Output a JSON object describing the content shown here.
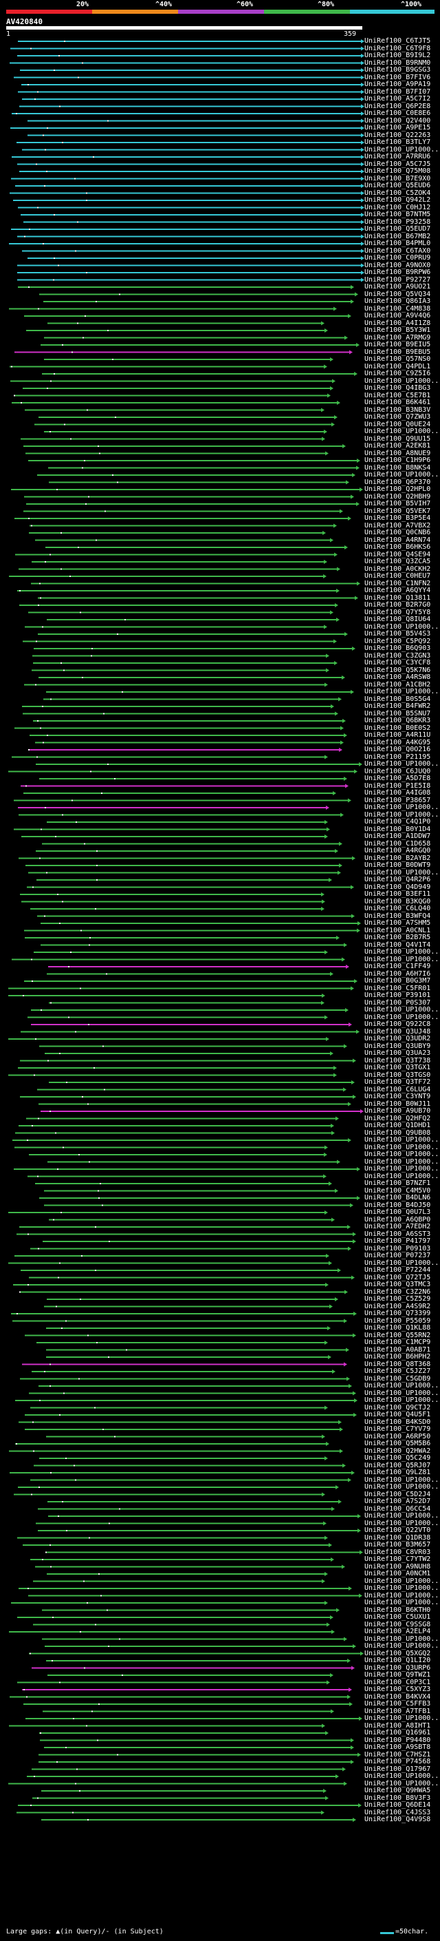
{
  "scale": {
    "labels": [
      "20%",
      "^40%",
      "^60%",
      "^80%",
      "^100%"
    ],
    "colors": [
      "#e8202a",
      "#f08a1c",
      "#a840c8",
      "#3fb84a",
      "#36c8d6"
    ]
  },
  "query": {
    "id": "AV420840",
    "start": "1",
    "end": "359"
  },
  "palette": {
    "cyan": "#36c8d6",
    "green": "#3fb84a",
    "magenta": "#d030c8",
    "red": "#e8202a"
  },
  "hits": [
    "UniRef100_C6TJT5",
    "UniRef100_C6T9F8",
    "UniRef100_B9I9L2",
    "UniRef100_B9RNM0",
    "UniRef100_B9GSG3",
    "UniRef100_B7FIV6",
    "UniRef100_A9PA19",
    "UniRef100_B7FI07",
    "UniRef100_A5C7I2",
    "UniRef100_Q6P2E8",
    "UniRef100_C0E8E6",
    "UniRef100_Q2V400",
    "UniRef100_A9PE15",
    "UniRef100_Q22263",
    "UniRef100_B3TLY7",
    "UniRef100_UP1000...",
    "UniRef100_A7RRU6",
    "UniRef100_A5C7J5",
    "UniRef100_Q75M08",
    "UniRef100_B7E9X0",
    "UniRef100_Q5EUD6",
    "UniRef100_C5ZOK4",
    "UniRef100_Q942L2",
    "UniRef100_C0HJ12",
    "UniRef100_B7NTM5",
    "UniRef100_P93258",
    "UniRef100_Q5EUD7",
    "UniRef100_B67MB2",
    "UniRef100_B4PML0",
    "UniRef100_C6TAX0",
    "UniRef100_C0PRU9",
    "UniRef100_A9NOX0",
    "UniRef100_B9RPW6",
    "UniRef100_P92727",
    "UniRef100_A9UO21",
    "UniRef100_Q5VQ34",
    "UniRef100_Q86IA3",
    "UniRef100_C4M838",
    "UniRef100_A9V4Q6",
    "UniRef100_A4I1Z8",
    "UniRef100_B5Y3W1",
    "UniRef100_A7RMG9",
    "UniRef100_B9EIU5",
    "UniRef100_B9EBU5",
    "UniRef100_Q57NS0",
    "UniRef100_Q4PDL1",
    "UniRef100_C9Z5I6",
    "UniRef100_UP1000...",
    "UniRef100_Q4IBG3",
    "UniRef100_C5E7B1",
    "UniRef100_B6K461",
    "UniRef100_B3NB3V",
    "UniRef100_Q7ZWU3",
    "UniRef100_Q0UE24",
    "UniRef100_UP1000...",
    "UniRef100_Q9UU15",
    "UniRef100_A2EK81",
    "UniRef100_A8NUE9",
    "UniRef100_C1H9P6",
    "UniRef100_B8NKS4",
    "UniRef100_UP1000...",
    "UniRef100_Q6P370",
    "UniRef100_Q2HPL0",
    "UniRef100_Q2HBH9",
    "UniRef100_B5VIH7",
    "UniRef100_Q5VEK7",
    "UniRef100_B3P5E4",
    "UniRef100_A7VBX2",
    "UniRef100_Q0CNB6",
    "UniRef100_A4RN74",
    "UniRef100_B6HKS6",
    "UniRef100_Q4SE94",
    "UniRef100_Q3ZCA5",
    "UniRef100_A0CKH2",
    "UniRef100_C0HEU7",
    "UniRef100_C1NFN2",
    "UniRef100_A6QYY4",
    "UniRef100_Q13811",
    "UniRef100_B2R7G0",
    "UniRef100_Q7Y5Y8",
    "UniRef100_Q8IU64",
    "UniRef100_UP1000...",
    "UniRef100_B5V4S3",
    "UniRef100_C5PQ92",
    "UniRef100_B6Q903",
    "UniRef100_C3ZGN3",
    "UniRef100_C3YCF8",
    "UniRef100_Q5K7N6",
    "UniRef100_A4RSW8",
    "UniRef100_A1CBH2",
    "UniRef100_UP1000...",
    "UniRef100_B0S5G4",
    "UniRef100_B4FWR2",
    "UniRef100_B5SNU7",
    "UniRef100_Q6BKR3",
    "UniRef100_B0E0S2",
    "UniRef100_A4R11U",
    "UniRef100_A4KG95",
    "UniRef100_Q0O216",
    "UniRef100_P21195",
    "UniRef100_UP1000...",
    "UniRef100_C6JUQ0",
    "UniRef100_A5D7E8",
    "UniRef100_P1E5I8",
    "UniRef100_A4IG08",
    "UniRef100_P38657",
    "UniRef100_UP1000...",
    "UniRef100_UP1000...",
    "UniRef100_C4Q1P0",
    "UniRef100_B0Y1D4",
    "UniRef100_A1DDW7",
    "UniRef100_C1D658",
    "UniRef100_A4RGQ0",
    "UniRef100_B2AYB2",
    "UniRef100_B0DWT9",
    "UniRef100_UP1000...",
    "UniRef100_Q4R2P6",
    "UniRef100_Q4D949",
    "UniRef100_B3EF11",
    "UniRef100_B3KQG0",
    "UniRef100_C6LQ40",
    "UniRef100_B3WFQ4",
    "UniRef100_A7SHM5",
    "UniRef100_A0CNL1",
    "UniRef100_B2B7R5",
    "UniRef100_Q4V1T4",
    "UniRef100_UP1000...",
    "UniRef100_UP1000...",
    "UniRef100_C1FF49",
    "UniRef100_A6H7I6",
    "UniRef100_B0G3M7",
    "UniRef100_C5FR01",
    "UniRef100_P39101",
    "UniRef100_P0S307",
    "UniRef100_UP1000...",
    "UniRef100_UP1000...",
    "UniRef100_Q922C8",
    "UniRef100_Q3UJ48",
    "UniRef100_Q3UDR2",
    "UniRef100_Q3UBY9",
    "UniRef100_Q3UA23",
    "UniRef100_Q3T738",
    "UniRef100_Q3TGX1",
    "UniRef100_Q3TGS0",
    "UniRef100_Q3TF72",
    "UniRef100_C6LUG4",
    "UniRef100_C3YNT9",
    "UniRef100_B0WJ11",
    "UniRef100_A9UB70",
    "UniRef100_Q2HFQ2",
    "UniRef100_Q1DHD1",
    "UniRef100_Q9UB08",
    "UniRef100_UP1000...",
    "UniRef100_UP1000...",
    "UniRef100_UP1000...",
    "UniRef100_UP1000...",
    "UniRef100_UP1000...",
    "UniRef100_UP1000...",
    "UniRef100_B7NZF1",
    "UniRef100_C4M5V0",
    "UniRef100_B4DLN6",
    "UniRef100_B4DJ50",
    "UniRef100_Q0U7L3",
    "UniRef100_A6QBP0",
    "UniRef100_A7EDH2",
    "UniRef100_A6SST3",
    "UniRef100_P41797",
    "UniRef100_P09103",
    "UniRef100_P07237",
    "UniRef100_UP1000...",
    "UniRef100_P72244",
    "UniRef100_Q72TJ5",
    "UniRef100_Q3TMC3",
    "UniRef100_C3Z2N6",
    "UniRef100_C5Z529",
    "UniRef100_A4S9R2",
    "UniRef100_Q73399",
    "UniRef100_P55059",
    "UniRef100_Q1KL88",
    "UniRef100_Q55RN2",
    "UniRef100_C1MCP9",
    "UniRef100_A0AB71",
    "UniRef100_B6HPH2",
    "UniRef100_Q8T368",
    "UniRef100_C5JZ27",
    "UniRef100_C5GDB9",
    "UniRef100_UP1000...",
    "UniRef100_UP1000...",
    "UniRef100_UP1000...",
    "UniRef100_Q9CTJ2",
    "UniRef100_Q4U5F1",
    "UniRef100_B4KSD0",
    "UniRef100_C7YV79",
    "UniRef100_A6RP50",
    "UniRef100_Q5M5B6",
    "UniRef100_Q2HWA2",
    "UniRef100_Q5C249",
    "UniRef100_Q5RJ07",
    "UniRef100_Q9LZ81",
    "UniRef100_UP1000...",
    "UniRef100_UP1000...",
    "UniRef100_C5D2J4",
    "UniRef100_A7S2D7",
    "UniRef100_Q6CC54",
    "UniRef100_UP1000...",
    "UniRef100_UP1000...",
    "UniRef100_Q22VT0",
    "UniRef100_Q1DR38",
    "UniRef100_B3M657",
    "UniRef100_C8VR03",
    "UniRef100_C7YTW2",
    "UniRef100_A9NUH8",
    "UniRef100_A0NCM1",
    "UniRef100_UP1000...",
    "UniRef100_UP1000...",
    "UniRef100_UP1000...",
    "UniRef100_UP1000...",
    "UniRef100_B6KTH0",
    "UniRef100_C5UXU1",
    "UniRef100_C9SSG8",
    "UniRef100_A2ELP4",
    "UniRef100_UP1000...",
    "UniRef100_UP1000...",
    "UniRef100_Q5XGQ2",
    "UniRef100_Q1LI20",
    "UniRef100_Q3URP6",
    "UniRef100_Q9TWZ1",
    "UniRef100_C0P3C1",
    "UniRef100_C5XYZ3",
    "UniRef100_B4KVX4",
    "UniRef100_C5FFB3",
    "UniRef100_A7TFB1",
    "UniRef100_UP1000...",
    "UniRef100_A8IHT1",
    "UniRef100_Q16961",
    "UniRef100_P94480",
    "UniRef100_A9SBT8",
    "UniRef100_C7HSZ1",
    "UniRef100_P74568",
    "UniRef100_Q17967",
    "UniRef100_UP1000...",
    "UniRef100_UP1000...",
    "UniRef100_Q9HWA5",
    "UniRef100_B8V3F3",
    "UniRef100_Q6DE14",
    "UniRef100_C4JSS3",
    "UniRef100_Q4V9S8"
  ],
  "footer": {
    "text": "Large gaps: ▲(in Query)/- (in Subject)",
    "legend": "=50char."
  }
}
